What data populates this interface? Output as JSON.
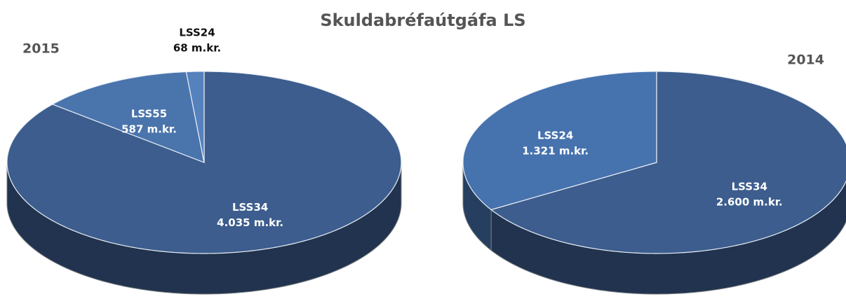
{
  "title": "Skuldabréfaútgáfa LS",
  "chart_data": [
    {
      "type": "pie",
      "title": "2015",
      "categories": [
        "LSS34",
        "LSS55",
        "LSS24"
      ],
      "values": [
        4035,
        587,
        68
      ],
      "value_labels": [
        "4.035 m.kr.",
        "587 m.kr.",
        "68 m.kr."
      ],
      "colors": [
        "#3c5d8d",
        "#4a74ac",
        "#5581bd"
      ]
    },
    {
      "type": "pie",
      "title": "2014",
      "categories": [
        "LSS34",
        "LSS24"
      ],
      "values": [
        2600,
        1321
      ],
      "value_labels": [
        "2.600 m.kr.",
        "1.321 m.kr."
      ],
      "colors": [
        "#3c5d8d",
        "#4672ae"
      ]
    }
  ]
}
